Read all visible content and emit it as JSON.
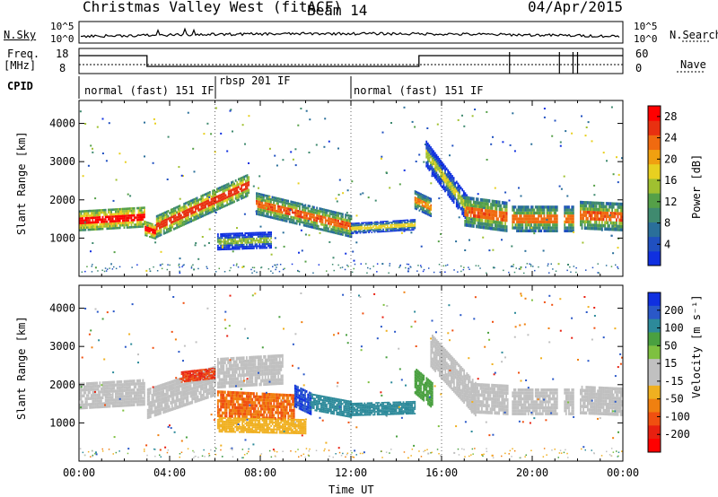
{
  "header": {
    "title": "Christmas Valley West (fitACF)",
    "beam": "Beam 14",
    "date": "04/Apr/2015"
  },
  "aux_panels": {
    "noise_label": "N.Sky",
    "noise_right_label": "N.Search",
    "noise_ticks": [
      "10^5",
      "10^0"
    ],
    "freq_label_1": "Freq.",
    "freq_label_2": "[MHz]",
    "freq_ticks": [
      "18",
      "8"
    ],
    "nave_label": "Nave",
    "nave_ticks": [
      "60",
      "0"
    ],
    "cpid_label": "CPID",
    "cpid_segments": [
      {
        "label": "normal (fast) 151 IF",
        "start_hour": 0,
        "end_hour": 6
      },
      {
        "label": "rbsp 201 IF",
        "start_hour": 6,
        "end_hour": 12
      },
      {
        "label": "normal (fast) 151 IF",
        "start_hour": 12,
        "end_hour": 24
      }
    ]
  },
  "chart_data": [
    {
      "type": "heatmap",
      "name": "power",
      "xlabel": "Time UT",
      "ylabel": "Slant Range [km]",
      "xlim": [
        0,
        24
      ],
      "ylim": [
        0,
        4600
      ],
      "x_ticks": [
        "00:00",
        "04:00",
        "08:00",
        "12:00",
        "16:00",
        "20:00",
        "00:00"
      ],
      "y_ticks": [
        1000,
        2000,
        3000,
        4000
      ],
      "colorbar": {
        "label": "Power [dB]",
        "ticks": [
          4,
          8,
          12,
          16,
          20,
          24,
          28
        ],
        "range": [
          0,
          30
        ],
        "colors": [
          "#1030e0",
          "#2050c0",
          "#2a6f9a",
          "#3f8a6f",
          "#55a048",
          "#a0c030",
          "#e8d020",
          "#f0a010",
          "#f06a10",
          "#e83010",
          "#ff0000"
        ]
      },
      "echo_bands": [
        {
          "start_hour": 0.0,
          "end_hour": 2.9,
          "center_start_km": 1450,
          "center_end_km": 1550,
          "width_km": 550,
          "power_db": 24
        },
        {
          "start_hour": 2.9,
          "end_hour": 3.4,
          "center_start_km": 1250,
          "center_end_km": 1150,
          "width_km": 400,
          "power_db": 25
        },
        {
          "start_hour": 3.4,
          "end_hour": 7.5,
          "center_start_km": 1300,
          "center_end_km": 2400,
          "width_km": 600,
          "power_db": 22
        },
        {
          "start_hour": 6.1,
          "end_hour": 8.5,
          "center_start_km": 900,
          "center_end_km": 950,
          "width_km": 450,
          "power_db": 10
        },
        {
          "start_hour": 7.8,
          "end_hour": 12.0,
          "center_start_km": 1900,
          "center_end_km": 1300,
          "width_km": 600,
          "power_db": 20
        },
        {
          "start_hour": 12.0,
          "end_hour": 14.8,
          "center_start_km": 1250,
          "center_end_km": 1350,
          "width_km": 300,
          "power_db": 14
        },
        {
          "start_hour": 14.8,
          "end_hour": 15.5,
          "center_start_km": 2000,
          "center_end_km": 1800,
          "width_km": 500,
          "power_db": 18
        },
        {
          "start_hour": 15.3,
          "end_hour": 17.2,
          "center_start_km": 3200,
          "center_end_km": 1700,
          "width_km": 700,
          "power_db": 12
        },
        {
          "start_hour": 17.0,
          "end_hour": 18.9,
          "center_start_km": 1700,
          "center_end_km": 1550,
          "width_km": 800,
          "power_db": 20
        },
        {
          "start_hour": 19.1,
          "end_hour": 21.1,
          "center_start_km": 1500,
          "center_end_km": 1500,
          "width_km": 700,
          "power_db": 19
        },
        {
          "start_hour": 21.4,
          "end_hour": 21.8,
          "center_start_km": 1500,
          "center_end_km": 1500,
          "width_km": 700,
          "power_db": 18
        },
        {
          "start_hour": 22.1,
          "end_hour": 24.0,
          "center_start_km": 1600,
          "center_end_km": 1550,
          "width_km": 750,
          "power_db": 20
        }
      ]
    },
    {
      "type": "heatmap",
      "name": "velocity",
      "xlabel": "Time UT",
      "ylabel": "Slant Range [km]",
      "xlim": [
        0,
        24
      ],
      "ylim": [
        0,
        4600
      ],
      "x_ticks": [
        "00:00",
        "04:00",
        "08:00",
        "12:00",
        "16:00",
        "20:00",
        "00:00"
      ],
      "y_ticks": [
        1000,
        2000,
        3000,
        4000
      ],
      "colorbar": {
        "label": "Velocity [m s⁻¹]",
        "ticks": [
          "200",
          "100",
          "50",
          "15",
          "-15",
          "-50",
          "-100",
          "-200"
        ],
        "colors": [
          "#1030e0",
          "#2a58c8",
          "#2d8a9a",
          "#4aa040",
          "#7ec040",
          "#c0c0c0",
          "#c0c0c0",
          "#f0b020",
          "#f08010",
          "#f05010",
          "#e82010",
          "#ff0000"
        ]
      },
      "echo_bands": [
        {
          "start_hour": 0.0,
          "end_hour": 2.9,
          "center_start_km": 1700,
          "center_end_km": 1800,
          "width_km": 700,
          "velocity": 0
        },
        {
          "start_hour": 3.0,
          "end_hour": 6.0,
          "center_start_km": 1500,
          "center_end_km": 2100,
          "width_km": 800,
          "velocity": 0
        },
        {
          "start_hour": 4.5,
          "end_hour": 6.0,
          "center_start_km": 2200,
          "center_end_km": 2300,
          "width_km": 300,
          "velocity": -120
        },
        {
          "start_hour": 6.1,
          "end_hour": 9.0,
          "center_start_km": 2300,
          "center_end_km": 2400,
          "width_km": 800,
          "velocity": 0
        },
        {
          "start_hour": 6.1,
          "end_hour": 9.5,
          "center_start_km": 1500,
          "center_end_km": 1400,
          "width_km": 700,
          "velocity": -80
        },
        {
          "start_hour": 6.1,
          "end_hour": 10.0,
          "center_start_km": 950,
          "center_end_km": 900,
          "width_km": 400,
          "velocity": -40
        },
        {
          "start_hour": 9.5,
          "end_hour": 10.2,
          "center_start_km": 1700,
          "center_end_km": 1500,
          "width_km": 600,
          "velocity": 150
        },
        {
          "start_hour": 10.2,
          "end_hour": 12.0,
          "center_start_km": 1550,
          "center_end_km": 1350,
          "width_km": 450,
          "velocity": 70
        },
        {
          "start_hour": 12.0,
          "end_hour": 14.8,
          "center_start_km": 1350,
          "center_end_km": 1400,
          "width_km": 350,
          "velocity": 70
        },
        {
          "start_hour": 14.8,
          "end_hour": 15.6,
          "center_start_km": 2100,
          "center_end_km": 1700,
          "width_km": 700,
          "velocity": 40
        },
        {
          "start_hour": 15.5,
          "end_hour": 17.5,
          "center_start_km": 2900,
          "center_end_km": 1600,
          "width_km": 900,
          "velocity": 0
        },
        {
          "start_hour": 17.3,
          "end_hour": 18.9,
          "center_start_km": 1650,
          "center_end_km": 1600,
          "width_km": 800,
          "velocity": 0
        },
        {
          "start_hour": 19.1,
          "end_hour": 21.1,
          "center_start_km": 1550,
          "center_end_km": 1550,
          "width_km": 700,
          "velocity": 0
        },
        {
          "start_hour": 21.4,
          "end_hour": 21.8,
          "center_start_km": 1550,
          "center_end_km": 1550,
          "width_km": 700,
          "velocity": 0
        },
        {
          "start_hour": 22.1,
          "end_hour": 24.0,
          "center_start_km": 1600,
          "center_end_km": 1550,
          "width_km": 750,
          "velocity": 0
        }
      ]
    }
  ]
}
